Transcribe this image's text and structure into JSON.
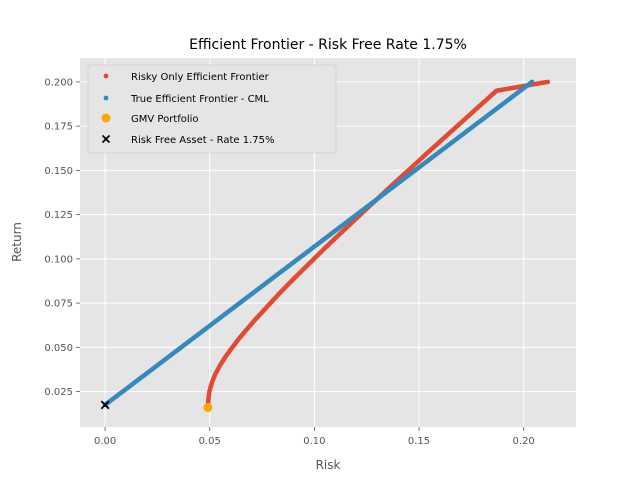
{
  "chart_data": {
    "type": "scatter",
    "title": "Efficient Frontier - Risk Free Rate 1.75%",
    "xlabel": "Risk",
    "ylabel": "Return",
    "xlim": [
      -0.012,
      0.225
    ],
    "ylim": [
      0.005,
      0.2135
    ],
    "xticks": [
      0.0,
      0.05,
      0.1,
      0.15,
      0.2
    ],
    "xtick_labels": [
      "0.00",
      "0.05",
      "0.10",
      "0.15",
      "0.20"
    ],
    "yticks": [
      0.025,
      0.05,
      0.075,
      0.1,
      0.125,
      0.15,
      0.175,
      0.2
    ],
    "ytick_labels": [
      "0.025",
      "0.050",
      "0.075",
      "0.100",
      "0.125",
      "0.150",
      "0.175",
      "0.200"
    ],
    "grid": true,
    "legend_position": "top-left",
    "series": [
      {
        "name": "Risky Only Efficient Frontier",
        "color": "#e24a33",
        "marker": "dot",
        "points": [
          [
            0.0491,
            0.016
          ],
          [
            0.0493,
            0.02
          ],
          [
            0.0498,
            0.025
          ],
          [
            0.051,
            0.03
          ],
          [
            0.0527,
            0.035
          ],
          [
            0.055,
            0.04
          ],
          [
            0.0577,
            0.045
          ],
          [
            0.0608,
            0.05
          ],
          [
            0.064,
            0.055
          ],
          [
            0.0676,
            0.06
          ],
          [
            0.0712,
            0.065
          ],
          [
            0.0751,
            0.07
          ],
          [
            0.079,
            0.075
          ],
          [
            0.0829,
            0.08
          ],
          [
            0.087,
            0.085
          ],
          [
            0.0912,
            0.09
          ],
          [
            0.0955,
            0.095
          ],
          [
            0.0998,
            0.1
          ],
          [
            0.1041,
            0.105
          ],
          [
            0.1085,
            0.11
          ],
          [
            0.113,
            0.115
          ],
          [
            0.1175,
            0.12
          ],
          [
            0.122,
            0.125
          ],
          [
            0.1265,
            0.13
          ],
          [
            0.1311,
            0.135
          ],
          [
            0.1356,
            0.14
          ],
          [
            0.1402,
            0.145
          ],
          [
            0.1449,
            0.15
          ],
          [
            0.1495,
            0.155
          ],
          [
            0.1541,
            0.16
          ],
          [
            0.1588,
            0.165
          ],
          [
            0.1635,
            0.17
          ],
          [
            0.1682,
            0.175
          ],
          [
            0.1729,
            0.18
          ],
          [
            0.1776,
            0.185
          ],
          [
            0.1823,
            0.19
          ],
          [
            0.187,
            0.195
          ],
          [
            0.2115,
            0.2
          ]
        ]
      },
      {
        "name": "True Efficient Frontier - CML",
        "color": "#348abd",
        "marker": "dot",
        "points": [
          [
            0.0,
            0.0175
          ],
          [
            0.204,
            0.2
          ]
        ]
      },
      {
        "name": "GMV Portfolio",
        "color": "#ffa500",
        "marker": "circle",
        "points": [
          [
            0.0491,
            0.016
          ]
        ]
      },
      {
        "name": "Risk Free Asset - Rate 1.75%",
        "color": "#000000",
        "marker": "x",
        "points": [
          [
            0.0,
            0.0175
          ]
        ]
      }
    ]
  }
}
